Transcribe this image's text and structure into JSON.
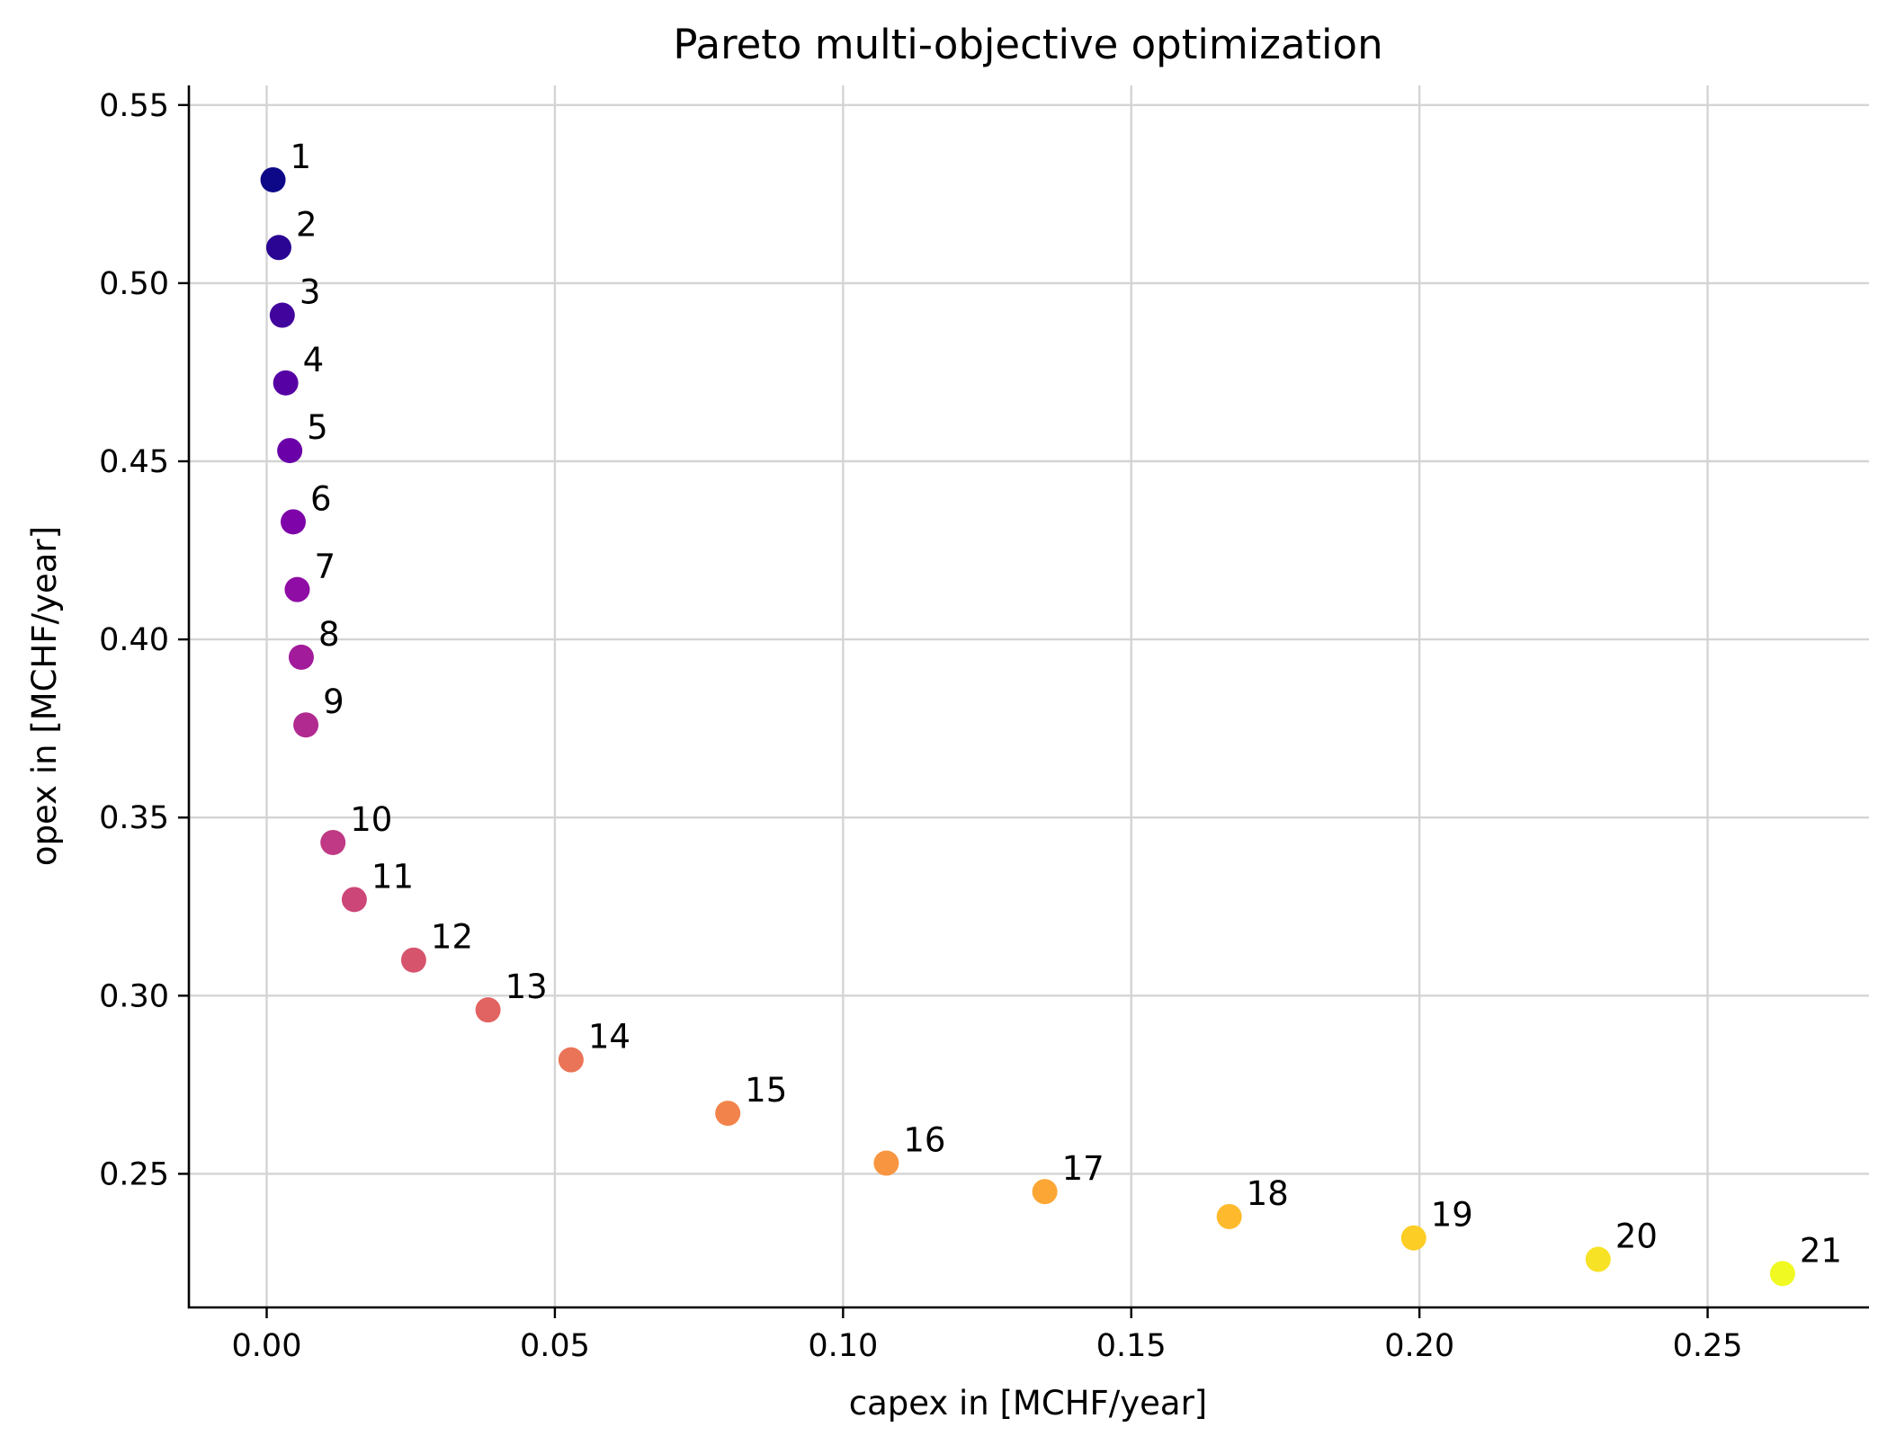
{
  "chart_data": {
    "type": "scatter",
    "title": "Pareto multi-objective optimization",
    "xlabel": "capex in [MCHF/year]",
    "ylabel": "opex in [MCHF/year]",
    "xlim": [
      -0.0135,
      0.278
    ],
    "ylim": [
      0.2125,
      0.5555
    ],
    "xticks": [
      0.0,
      0.05,
      0.1,
      0.15,
      0.2,
      0.25
    ],
    "xtick_labels": [
      "0.00",
      "0.05",
      "0.10",
      "0.15",
      "0.20",
      "0.25"
    ],
    "yticks": [
      0.25,
      0.3,
      0.35,
      0.4,
      0.45,
      0.5,
      0.55
    ],
    "ytick_labels": [
      "0.25",
      "0.30",
      "0.35",
      "0.40",
      "0.45",
      "0.50",
      "0.55"
    ],
    "grid": true,
    "colormap": "plasma",
    "points": [
      {
        "label": "1",
        "x": 0.0011,
        "y": 0.529,
        "color": "#0d0887"
      },
      {
        "label": "2",
        "x": 0.0021,
        "y": 0.51,
        "color": "#2a0593"
      },
      {
        "label": "3",
        "x": 0.0027,
        "y": 0.491,
        "color": "#41049d"
      },
      {
        "label": "4",
        "x": 0.0033,
        "y": 0.472,
        "color": "#5601a4"
      },
      {
        "label": "5",
        "x": 0.004,
        "y": 0.453,
        "color": "#6a00a8"
      },
      {
        "label": "6",
        "x": 0.0046,
        "y": 0.433,
        "color": "#7e03a8"
      },
      {
        "label": "7",
        "x": 0.0053,
        "y": 0.414,
        "color": "#8f0da4"
      },
      {
        "label": "8",
        "x": 0.006,
        "y": 0.395,
        "color": "#a11b9b"
      },
      {
        "label": "9",
        "x": 0.0068,
        "y": 0.376,
        "color": "#b12a90"
      },
      {
        "label": "10",
        "x": 0.0115,
        "y": 0.343,
        "color": "#bf3984"
      },
      {
        "label": "11",
        "x": 0.0152,
        "y": 0.327,
        "color": "#cc4778"
      },
      {
        "label": "12",
        "x": 0.0255,
        "y": 0.31,
        "color": "#d6556d"
      },
      {
        "label": "13",
        "x": 0.0384,
        "y": 0.296,
        "color": "#e16462"
      },
      {
        "label": "14",
        "x": 0.0528,
        "y": 0.282,
        "color": "#ea7457"
      },
      {
        "label": "15",
        "x": 0.08,
        "y": 0.267,
        "color": "#f2844b"
      },
      {
        "label": "16",
        "x": 0.1075,
        "y": 0.253,
        "color": "#f89540"
      },
      {
        "label": "17",
        "x": 0.135,
        "y": 0.245,
        "color": "#fca636"
      },
      {
        "label": "18",
        "x": 0.167,
        "y": 0.238,
        "color": "#feba2c"
      },
      {
        "label": "19",
        "x": 0.199,
        "y": 0.232,
        "color": "#fccd25"
      },
      {
        "label": "20",
        "x": 0.231,
        "y": 0.226,
        "color": "#f7e225"
      },
      {
        "label": "21",
        "x": 0.263,
        "y": 0.222,
        "color": "#f0f921"
      }
    ]
  }
}
